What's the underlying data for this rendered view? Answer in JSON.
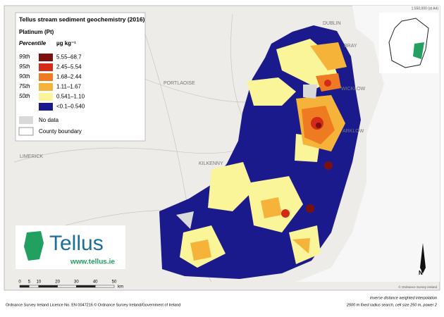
{
  "map": {
    "scale_note": "1:550,000 (at A4)",
    "title": "Tellus stream sediment geochemistry (2016)",
    "element": "Platinum (Pt)",
    "percentile_header": "Percentile",
    "unit_header": "µg kg⁻¹",
    "legend": [
      {
        "percentile": "99th",
        "range": "5.55–68.7",
        "color": "#7a1010"
      },
      {
        "percentile": "95th",
        "range": "2.45–5.54",
        "color": "#d42a1a"
      },
      {
        "percentile": "90th",
        "range": "1.68–2.44",
        "color": "#ee7a22"
      },
      {
        "percentile": "75th",
        "range": "1.11–1.67",
        "color": "#f6b33a"
      },
      {
        "percentile": "50th",
        "range": "0.541–1.10",
        "color": "#fbf59a"
      },
      {
        "range": "<0.1–0.540",
        "color": "#1b1a8c"
      }
    ],
    "no_data": "No data",
    "county_boundary": "County boundary",
    "logo_name": "Tellus",
    "logo_url": "www.tellus.ie",
    "places": [
      "DUBLIN",
      "BRAY",
      "WICKLOW",
      "ARKLOW",
      "KILKENNY",
      "LIMERICK",
      "PORTLAOISE"
    ],
    "scale_bar": {
      "ticks": [
        0,
        5,
        10,
        20,
        30,
        40,
        50
      ],
      "unit": "km"
    },
    "north": "N",
    "copyright": "© Ordnance Survey Ireland",
    "method": "Inverse distance weighted interpolation",
    "method_detail": "2500 m fixed radius search, cell size 250 m, power 2",
    "licence": "Ordnance Survey Ireland Licence No. EN 0047216 © Ordnance Survey Ireland/Government of Ireland"
  }
}
